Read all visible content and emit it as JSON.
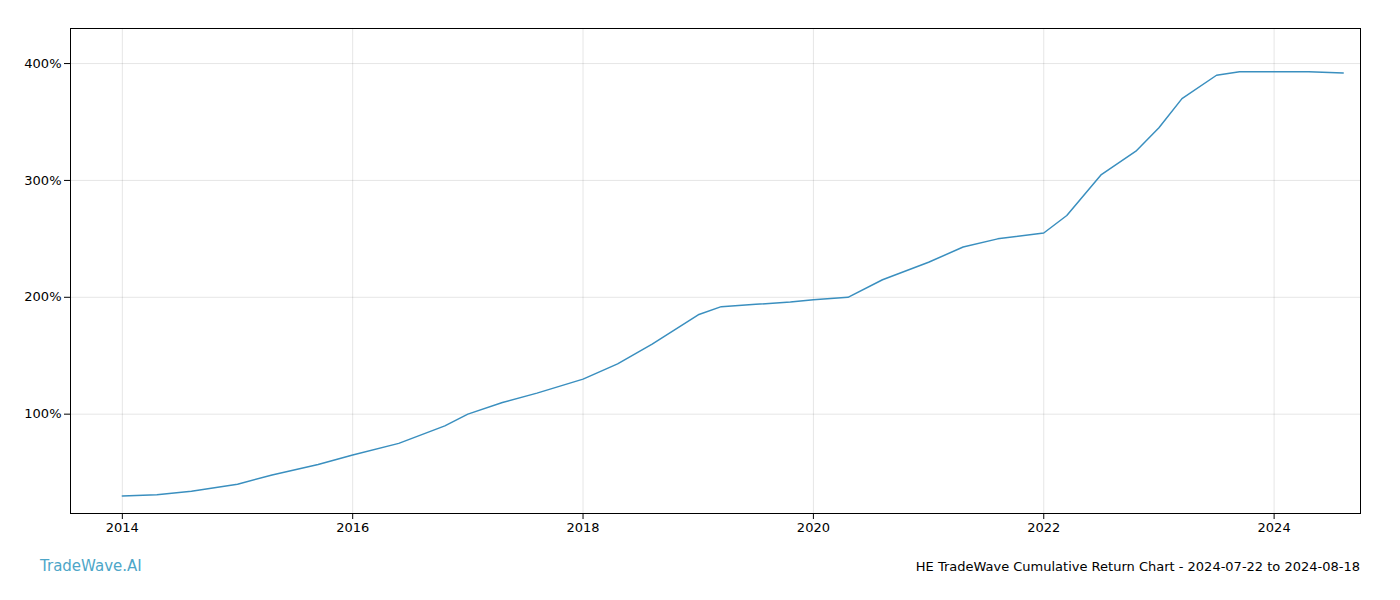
{
  "chart_data": {
    "type": "line",
    "title": "HE TradeWave Cumulative Return Chart - 2024-07-22 to 2024-08-18",
    "annotations": [
      {
        "text": "TradeWave.AI",
        "color": "#4da6c8"
      }
    ],
    "x": [
      2014.0,
      2014.3,
      2014.6,
      2015.0,
      2015.3,
      2015.7,
      2016.0,
      2016.4,
      2016.8,
      2017.0,
      2017.3,
      2017.6,
      2018.0,
      2018.3,
      2018.6,
      2019.0,
      2019.2,
      2019.5,
      2019.8,
      2020.0,
      2020.3,
      2020.6,
      2021.0,
      2021.3,
      2021.6,
      2022.0,
      2022.2,
      2022.5,
      2022.8,
      2023.0,
      2023.2,
      2023.5,
      2023.7,
      2024.0,
      2024.3,
      2024.6
    ],
    "values": [
      30,
      31,
      34,
      40,
      48,
      57,
      65,
      75,
      90,
      100,
      110,
      118,
      130,
      143,
      160,
      185,
      192,
      194,
      196,
      198,
      200,
      215,
      230,
      243,
      250,
      255,
      270,
      305,
      325,
      345,
      370,
      390,
      393,
      393,
      393,
      392
    ],
    "color": "#3a8fbf",
    "xlim": [
      2013.55,
      2024.75
    ],
    "ylim": [
      15,
      430
    ],
    "xticks": [
      2014,
      2016,
      2018,
      2020,
      2022,
      2024
    ],
    "yticks": [
      {
        "value": 100,
        "label": "100%"
      },
      {
        "value": 200,
        "label": "200%"
      },
      {
        "value": 300,
        "label": "300%"
      },
      {
        "value": 400,
        "label": "400%"
      }
    ],
    "grid": true
  }
}
